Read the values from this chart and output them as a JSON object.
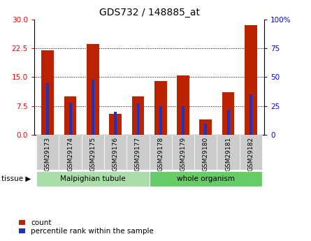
{
  "title": "GDS732 / 148885_at",
  "categories": [
    "GSM29173",
    "GSM29174",
    "GSM29175",
    "GSM29176",
    "GSM29177",
    "GSM29178",
    "GSM29179",
    "GSM29180",
    "GSM29181",
    "GSM29182"
  ],
  "count": [
    22.0,
    10.0,
    23.5,
    5.5,
    10.0,
    14.0,
    15.5,
    4.0,
    11.0,
    28.5
  ],
  "percentile": [
    45,
    28,
    48,
    20,
    27,
    25,
    25,
    10,
    22,
    35
  ],
  "left_ylim": [
    0,
    30
  ],
  "right_ylim": [
    0,
    100
  ],
  "left_yticks": [
    0,
    7.5,
    15,
    22.5,
    30
  ],
  "right_yticks": [
    0,
    25,
    50,
    75,
    100
  ],
  "right_yticklabels": [
    "0",
    "25",
    "50",
    "75",
    "100%"
  ],
  "bar_color": "#BB2200",
  "percentile_color": "#2233BB",
  "tissue_groups": [
    {
      "label": "Malpighian tubule",
      "start": 0,
      "end": 5,
      "color": "#AADDAA"
    },
    {
      "label": "whole organism",
      "start": 5,
      "end": 10,
      "color": "#66CC66"
    }
  ],
  "tissue_label": "tissue",
  "legend_count_label": "count",
  "legend_percentile_label": "percentile rank within the sample",
  "bar_width": 0.55,
  "pct_bar_width": 0.12
}
